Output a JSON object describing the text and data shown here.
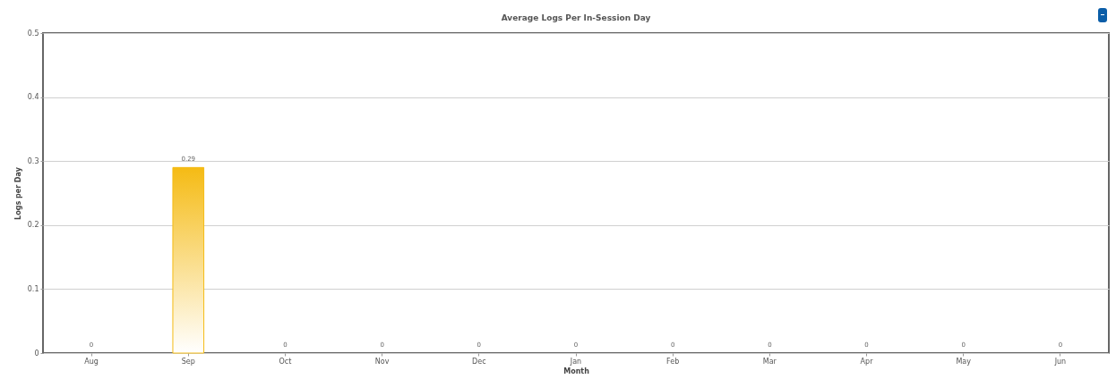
{
  "chart_data": {
    "type": "bar",
    "title": "Average Logs Per In-Session Day",
    "xlabel": "Month",
    "ylabel": "Logs per Day",
    "categories": [
      "Aug",
      "Sep",
      "Oct",
      "Nov",
      "Dec",
      "Jan",
      "Feb",
      "Mar",
      "Apr",
      "May",
      "Jun"
    ],
    "values": [
      0,
      0.29,
      0,
      0,
      0,
      0,
      0,
      0,
      0,
      0,
      0
    ],
    "color": "#f5bb14",
    "ylim": [
      0,
      0.5
    ],
    "yticks": [
      0,
      0.1,
      0.2,
      0.3,
      0.4,
      0.5
    ],
    "grid": "y",
    "data_labels": true
  }
}
